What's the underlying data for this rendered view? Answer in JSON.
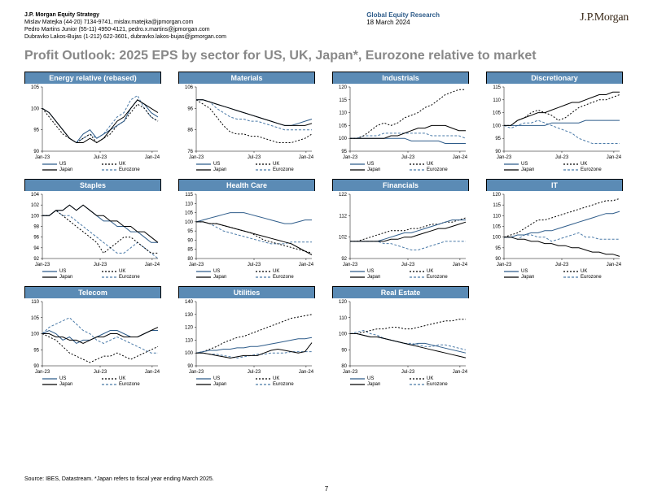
{
  "header": {
    "team": "J.P. Morgan Equity Strategy",
    "contacts": [
      "Mislav Matejka (44-20) 7134-9741, mislav.matejka@jpmorgan.com",
      "Pedro Martins Junior (55-11) 4950-4121, pedro.x.martins@jpmorgan.com",
      "Dubravko Lakos-Bujas (1-212) 622-3601, dubravko.lakos-bujas@jpmorgan.com"
    ],
    "global": "Global Equity Research",
    "date": "18 March 2024",
    "logo": "J.P.Morgan"
  },
  "title": "Profit Outlook: 2025 EPS by sector for US, UK, Japan*, Eurozone relative to market",
  "legend_labels": {
    "us": "US",
    "uk": "UK",
    "japan": "Japan",
    "eurozone": "Eurozone"
  },
  "colors": {
    "title_bar": "#5b8bb5",
    "us": "#2e5c8a",
    "uk": "#000000",
    "japan": "#000000",
    "eurozone": "#4a7aa8",
    "page_title": "#888888",
    "text": "#000000",
    "bg": "#ffffff"
  },
  "x_axis": {
    "ticks": [
      "Jan-23",
      "Jul-23",
      "Jan-24"
    ],
    "positions": [
      0,
      0.5,
      0.95
    ]
  },
  "charts": [
    {
      "title": "Energy relative (rebased)",
      "ylim": [
        90,
        105
      ],
      "yticks": [
        90,
        95,
        100,
        105
      ],
      "us": [
        100,
        99,
        97,
        95,
        93,
        92,
        94,
        95,
        93,
        94,
        95,
        96,
        97,
        100,
        102,
        101,
        99,
        98
      ],
      "uk": [
        100,
        98,
        96,
        94,
        93,
        92,
        93,
        94,
        92,
        93,
        94,
        96,
        97,
        99,
        101,
        100,
        98,
        97
      ],
      "japan": [
        100,
        99,
        97,
        95,
        93,
        92,
        92,
        93,
        92,
        93,
        95,
        97,
        98,
        100,
        102,
        101,
        100,
        99
      ],
      "ez": [
        100,
        99,
        97,
        95,
        93,
        92,
        93,
        94,
        93,
        94,
        96,
        98,
        99,
        102,
        103,
        100,
        98,
        97
      ]
    },
    {
      "title": "Materials",
      "ylim": [
        76,
        106
      ],
      "yticks": [
        76,
        86,
        96,
        106
      ],
      "us": [
        100,
        100,
        99,
        98,
        97,
        96,
        95,
        94,
        93,
        92,
        91,
        90,
        89,
        88,
        88,
        89,
        90,
        91
      ],
      "uk": [
        100,
        98,
        96,
        92,
        88,
        85,
        84,
        84,
        83,
        83,
        82,
        81,
        80,
        80,
        80,
        81,
        82,
        84
      ],
      "japan": [
        100,
        100,
        99,
        98,
        97,
        96,
        95,
        94,
        93,
        92,
        91,
        90,
        89,
        88,
        88,
        88,
        88,
        89
      ],
      "ez": [
        100,
        100,
        99,
        96,
        94,
        92,
        91,
        91,
        90,
        90,
        89,
        88,
        87,
        86,
        86,
        86,
        86,
        86
      ]
    },
    {
      "title": "Industrials",
      "ylim": [
        95,
        120
      ],
      "yticks": [
        95,
        100,
        105,
        110,
        115,
        120
      ],
      "us": [
        100,
        100,
        100,
        100,
        100,
        100,
        100,
        100,
        100,
        99,
        99,
        99,
        99,
        99,
        98,
        98,
        98,
        98
      ],
      "uk": [
        100,
        100,
        101,
        103,
        105,
        106,
        105,
        106,
        108,
        109,
        110,
        112,
        113,
        115,
        117,
        118,
        119,
        119
      ],
      "japan": [
        100,
        100,
        100,
        100,
        100,
        100,
        101,
        101,
        102,
        103,
        104,
        104,
        105,
        105,
        105,
        104,
        103,
        103
      ],
      "ez": [
        100,
        100,
        101,
        101,
        101,
        102,
        102,
        102,
        102,
        102,
        102,
        102,
        101,
        101,
        101,
        101,
        101,
        100
      ]
    },
    {
      "title": "Discretionary",
      "ylim": [
        90,
        115
      ],
      "yticks": [
        90,
        95,
        100,
        105,
        110,
        115
      ],
      "us": [
        100,
        100,
        100,
        100,
        100,
        100,
        100,
        101,
        101,
        101,
        101,
        101,
        102,
        102,
        102,
        102,
        102,
        102
      ],
      "uk": [
        100,
        100,
        102,
        103,
        105,
        106,
        105,
        104,
        102,
        103,
        105,
        107,
        108,
        109,
        110,
        110,
        111,
        112
      ],
      "japan": [
        100,
        100,
        102,
        103,
        104,
        105,
        105,
        106,
        107,
        108,
        109,
        109,
        110,
        111,
        112,
        112,
        113,
        113
      ],
      "ez": [
        100,
        99,
        100,
        101,
        101,
        102,
        101,
        100,
        99,
        98,
        97,
        95,
        94,
        93,
        93,
        93,
        93,
        93
      ]
    },
    {
      "title": "Staples",
      "ylim": [
        92,
        104
      ],
      "yticks": [
        92,
        94,
        96,
        98,
        100,
        102,
        104
      ],
      "us": [
        100,
        100,
        101,
        101,
        102,
        101,
        102,
        101,
        100,
        99,
        99,
        98,
        98,
        97,
        97,
        96,
        95,
        95
      ],
      "uk": [
        100,
        100,
        101,
        100,
        99,
        98,
        97,
        96,
        95,
        93,
        94,
        95,
        96,
        96,
        95,
        94,
        93,
        93
      ],
      "japan": [
        100,
        100,
        101,
        101,
        102,
        101,
        102,
        101,
        100,
        100,
        99,
        99,
        98,
        98,
        97,
        97,
        96,
        95
      ],
      "ez": [
        100,
        100,
        101,
        100,
        100,
        99,
        98,
        97,
        96,
        95,
        94,
        93,
        93,
        94,
        95,
        94,
        93,
        92
      ]
    },
    {
      "title": "Health Care",
      "ylim": [
        80,
        115
      ],
      "yticks": [
        80,
        85,
        90,
        95,
        100,
        105,
        110,
        115
      ],
      "us": [
        100,
        101,
        102,
        103,
        104,
        105,
        105,
        105,
        104,
        103,
        102,
        101,
        100,
        99,
        99,
        100,
        101,
        101
      ],
      "uk": [
        100,
        100,
        99,
        99,
        98,
        97,
        96,
        95,
        94,
        92,
        90,
        89,
        88,
        87,
        86,
        85,
        84,
        83
      ],
      "japan": [
        100,
        100,
        99,
        99,
        98,
        97,
        96,
        95,
        94,
        93,
        92,
        91,
        90,
        89,
        88,
        86,
        84,
        82
      ],
      "ez": [
        100,
        100,
        99,
        97,
        95,
        94,
        93,
        92,
        91,
        90,
        89,
        88,
        88,
        88,
        89,
        89,
        89,
        89
      ]
    },
    {
      "title": "Financials",
      "ylim": [
        92,
        122
      ],
      "yticks": [
        92,
        102,
        112,
        122
      ],
      "us": [
        100,
        100,
        100,
        100,
        100,
        101,
        102,
        103,
        104,
        104,
        105,
        106,
        107,
        108,
        109,
        110,
        110,
        110
      ],
      "uk": [
        100,
        100,
        101,
        102,
        103,
        104,
        105,
        105,
        105,
        106,
        106,
        107,
        108,
        108,
        109,
        109,
        110,
        111
      ],
      "japan": [
        100,
        100,
        100,
        100,
        100,
        100,
        101,
        101,
        102,
        102,
        103,
        104,
        105,
        106,
        106,
        107,
        108,
        109
      ],
      "ez": [
        100,
        100,
        100,
        100,
        100,
        99,
        99,
        98,
        97,
        96,
        96,
        97,
        98,
        99,
        100,
        100,
        100,
        100
      ]
    },
    {
      "title": "IT",
      "ylim": [
        90,
        120
      ],
      "yticks": [
        90,
        95,
        100,
        105,
        110,
        115,
        120
      ],
      "us": [
        100,
        100,
        101,
        101,
        102,
        102,
        103,
        103,
        104,
        105,
        106,
        107,
        108,
        109,
        110,
        111,
        111,
        112
      ],
      "uk": [
        100,
        101,
        102,
        104,
        106,
        108,
        108,
        109,
        110,
        111,
        112,
        113,
        114,
        115,
        116,
        117,
        117,
        118
      ],
      "japan": [
        100,
        100,
        99,
        99,
        98,
        98,
        97,
        97,
        96,
        96,
        95,
        95,
        94,
        93,
        93,
        92,
        92,
        91
      ],
      "ez": [
        100,
        100,
        99,
        101,
        101,
        100,
        100,
        98,
        99,
        100,
        101,
        102,
        100,
        100,
        99,
        99,
        99,
        99
      ]
    },
    {
      "title": "Telecom",
      "ylim": [
        90,
        110
      ],
      "yticks": [
        90,
        95,
        100,
        105,
        110
      ],
      "us": [
        100,
        101,
        100,
        98,
        99,
        97,
        98,
        98,
        99,
        100,
        101,
        101,
        100,
        99,
        99,
        100,
        101,
        101
      ],
      "uk": [
        100,
        99,
        98,
        96,
        94,
        93,
        92,
        91,
        92,
        93,
        93,
        94,
        93,
        92,
        93,
        94,
        95,
        96
      ],
      "japan": [
        100,
        100,
        99,
        99,
        98,
        98,
        97,
        98,
        99,
        99,
        100,
        100,
        99,
        99,
        99,
        100,
        101,
        102
      ],
      "ez": [
        100,
        102,
        103,
        104,
        105,
        103,
        101,
        100,
        98,
        97,
        98,
        99,
        98,
        97,
        96,
        95,
        94,
        94
      ]
    },
    {
      "title": "Utilities",
      "ylim": [
        90,
        140
      ],
      "yticks": [
        90,
        100,
        110,
        120,
        130,
        140
      ],
      "us": [
        100,
        101,
        102,
        102,
        103,
        103,
        104,
        104,
        105,
        105,
        106,
        107,
        108,
        109,
        110,
        111,
        111,
        112
      ],
      "uk": [
        100,
        101,
        103,
        105,
        108,
        110,
        112,
        113,
        115,
        117,
        119,
        121,
        123,
        125,
        127,
        128,
        129,
        130
      ],
      "japan": [
        100,
        100,
        99,
        98,
        97,
        96,
        97,
        98,
        98,
        98,
        100,
        102,
        103,
        102,
        101,
        100,
        101,
        108
      ],
      "ez": [
        100,
        100,
        99,
        99,
        98,
        97,
        96,
        97,
        98,
        99,
        99,
        100,
        100,
        100,
        101,
        101,
        101,
        101
      ]
    },
    {
      "title": "Real Estate",
      "ylim": [
        80,
        120
      ],
      "yticks": [
        80,
        90,
        100,
        110,
        120
      ],
      "us": [
        100,
        100,
        99,
        98,
        98,
        97,
        96,
        95,
        94,
        93,
        94,
        94,
        93,
        92,
        91,
        90,
        89,
        88
      ],
      "uk": [
        100,
        100,
        101,
        102,
        103,
        103,
        104,
        104,
        103,
        103,
        104,
        105,
        106,
        107,
        108,
        108,
        109,
        109
      ],
      "japan": [
        100,
        100,
        99,
        98,
        98,
        97,
        96,
        95,
        94,
        93,
        92,
        91,
        90,
        89,
        88,
        87,
        86,
        85
      ],
      "ez": [
        100,
        101,
        102,
        100,
        99,
        97,
        96,
        95,
        94,
        94,
        93,
        92,
        92,
        93,
        93,
        92,
        91,
        90
      ]
    }
  ],
  "source": "Source: IBES, Datastream. *Japan refers to fiscal year ending March 2025.",
  "page": "7"
}
